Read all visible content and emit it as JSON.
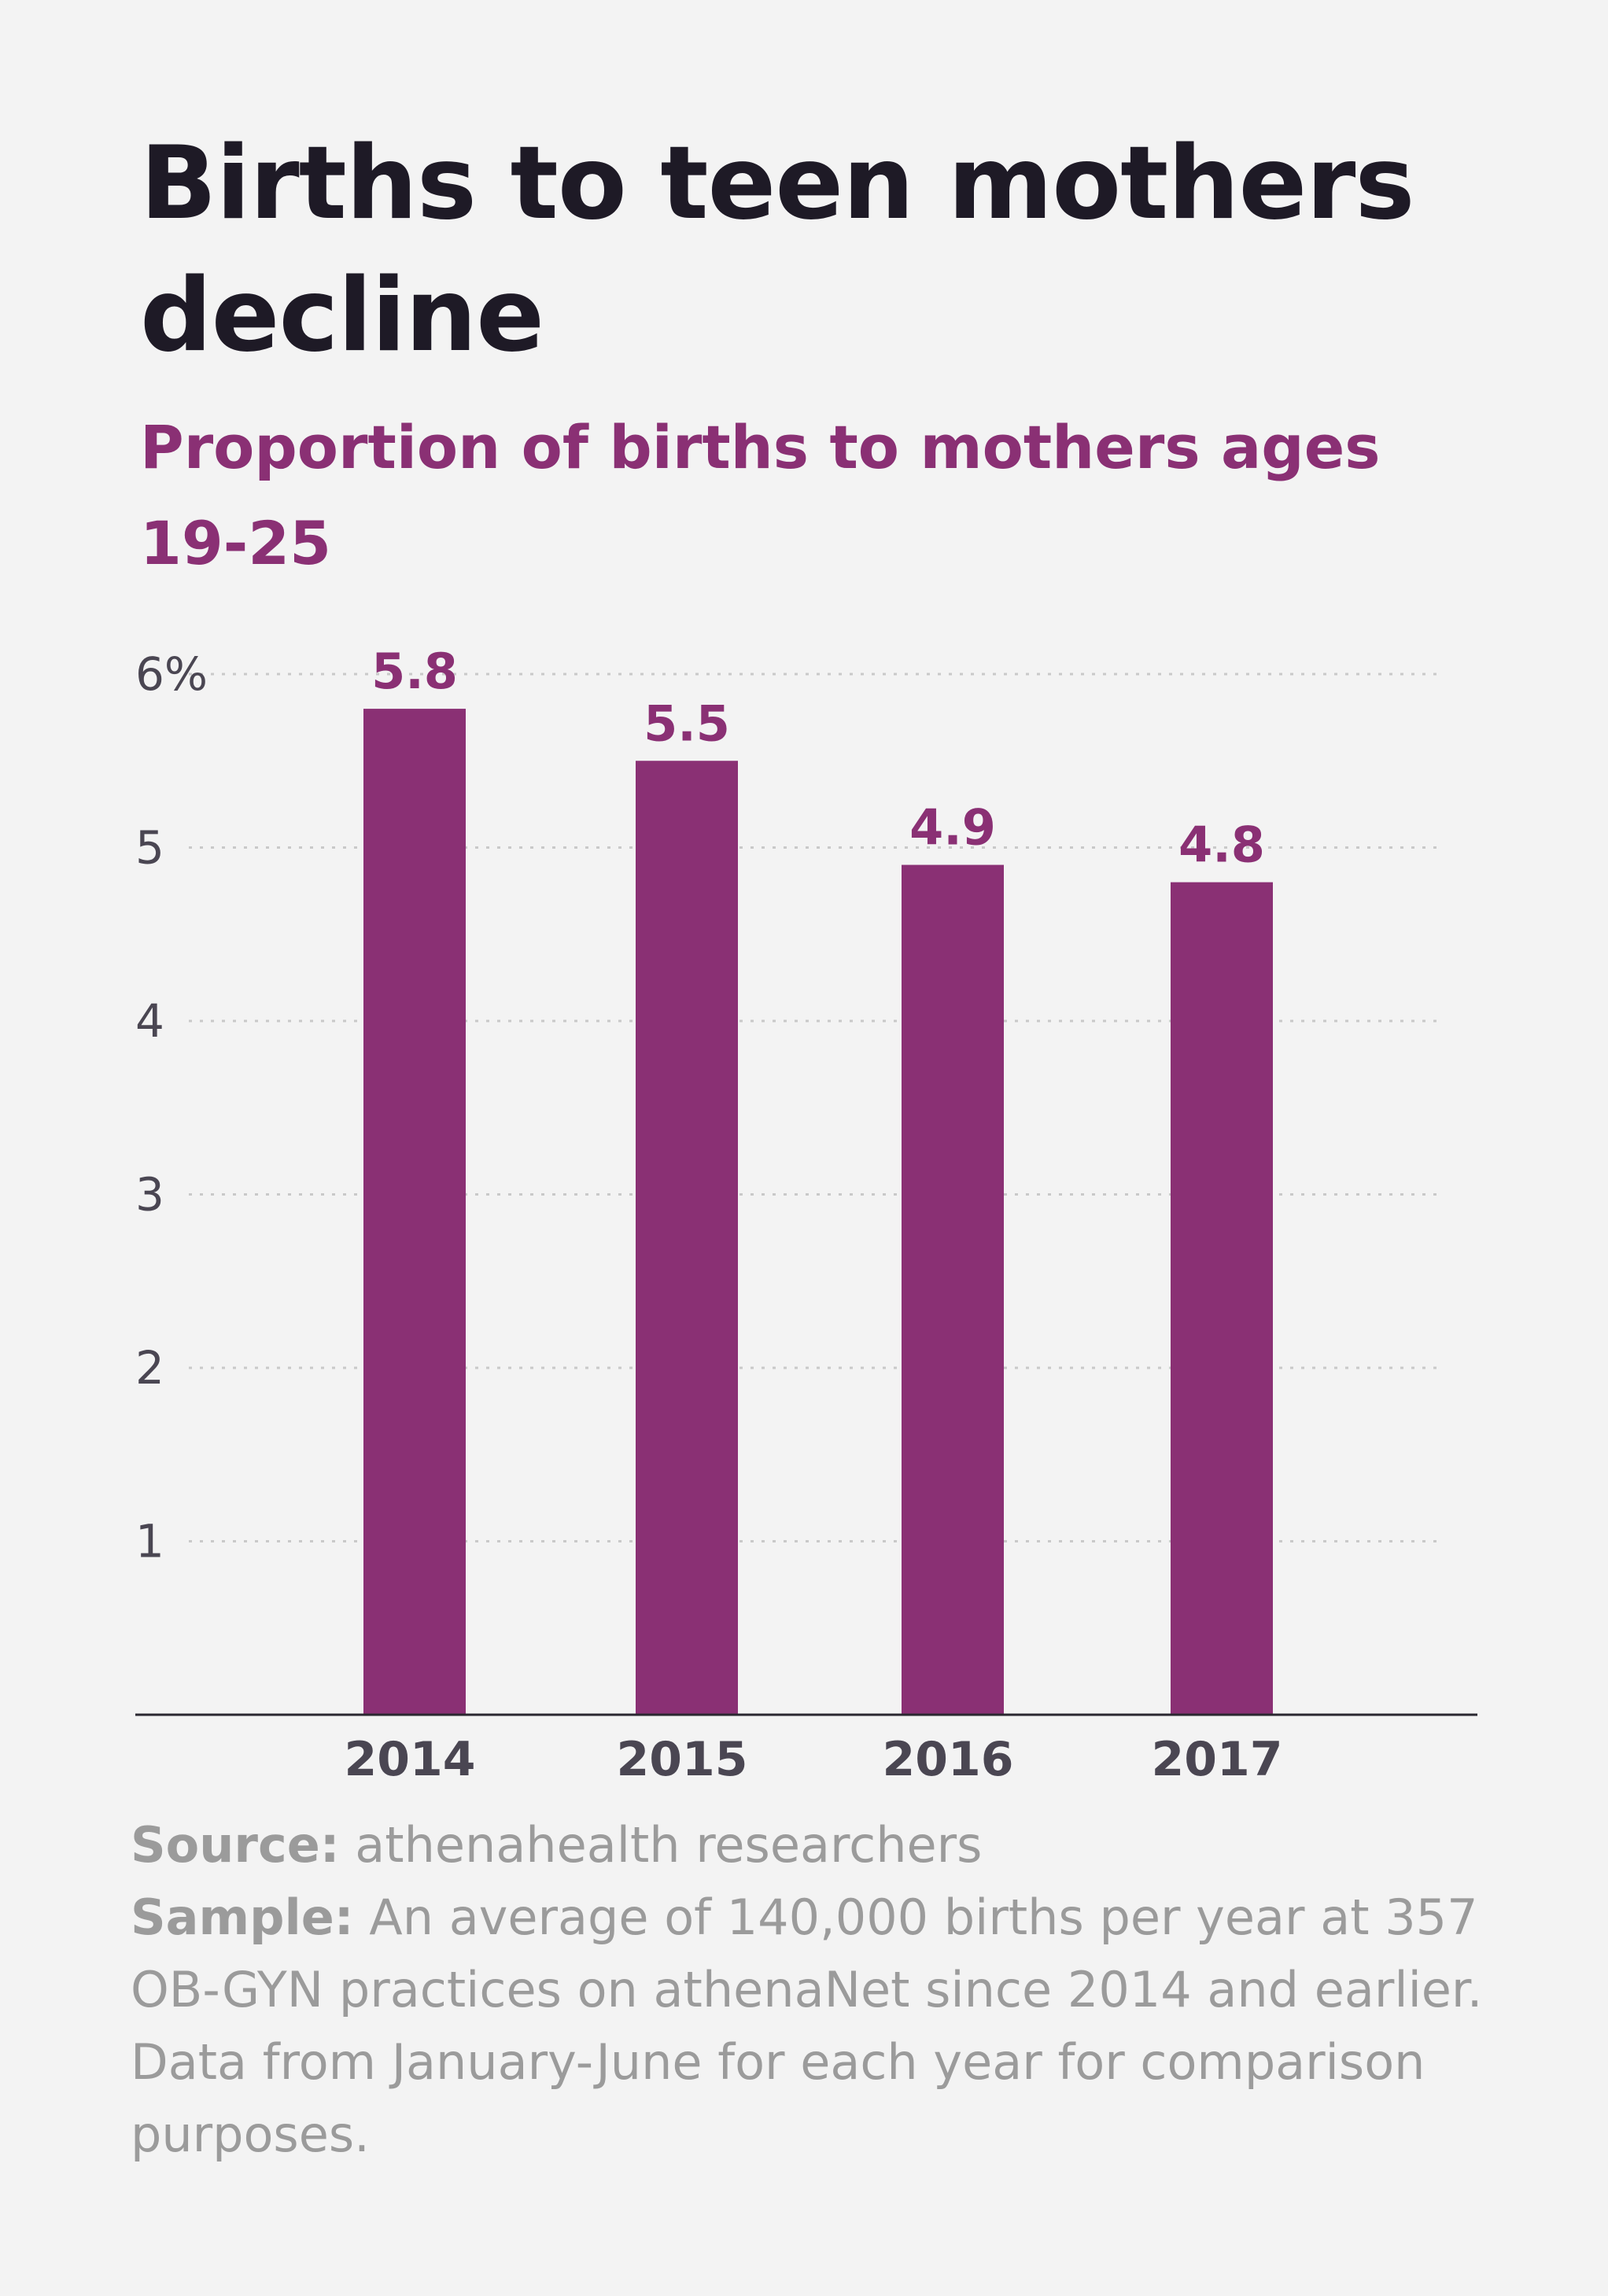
{
  "title": "Births to teen mothers decline",
  "subtitle": "Proportion of births to mothers ages 19-25",
  "chart_data": {
    "type": "bar",
    "categories": [
      "2014",
      "2015",
      "2016",
      "2017"
    ],
    "values": [
      5.8,
      5.5,
      4.9,
      4.8
    ],
    "value_labels": [
      "5.8",
      "5.5",
      "4.9",
      "4.8"
    ],
    "ylim": [
      0,
      6
    ],
    "y_ticks": [
      1,
      2,
      3,
      4,
      5,
      6
    ],
    "y_tick_labels": [
      "1",
      "2",
      "3",
      "4",
      "5",
      "6%"
    ],
    "grid": "horizontal-dotted",
    "bar_color": "#8a3074",
    "value_label_color": "#8a3074"
  },
  "source": {
    "label": "Source:",
    "text": "athenahealth researchers"
  },
  "sample": {
    "label": "Sample:",
    "text": "An average of 140,000 births per year at 357 OB-GYN practices on athenaNet since 2014 and earlier. Data from January-June for each year for comparison purposes."
  }
}
